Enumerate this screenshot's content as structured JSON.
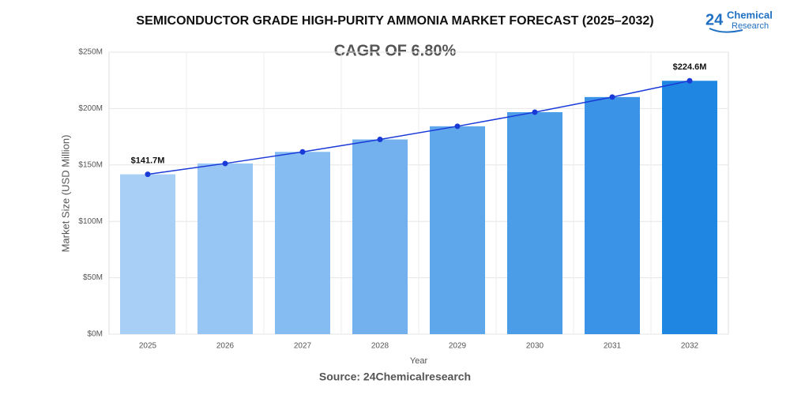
{
  "chart_data": {
    "type": "bar",
    "title": "SEMICONDUCTOR GRADE HIGH-PURITY AMMONIA MARKET FORECAST (2025–2032)",
    "subtitle": "CAGR OF 6.80%",
    "x_label": "Year",
    "y_label": "Market Size (USD Million)",
    "source": "Source: 24Chemicalresearch",
    "logo": {
      "number": "24",
      "line1": "Chemical",
      "line2": "Research"
    },
    "categories": [
      "2025",
      "2026",
      "2027",
      "2028",
      "2029",
      "2030",
      "2031",
      "2032"
    ],
    "values": [
      141.7,
      151.3,
      161.6,
      172.6,
      184.3,
      196.8,
      210.2,
      224.6
    ],
    "value_labels": [
      "$141.7M",
      null,
      null,
      null,
      null,
      null,
      null,
      "$224.6M"
    ],
    "colors": [
      "#a8d0f6",
      "#97c6f4",
      "#85bcf1",
      "#72b1ee",
      "#5fa7eb",
      "#4c9de8",
      "#3a93e6",
      "#1f86e2"
    ],
    "trend_line": true,
    "line_color": "#1a3ad8",
    "ylim": [
      0,
      250
    ],
    "yticks": [
      {
        "value": 0,
        "label": "$0M"
      },
      {
        "value": 50,
        "label": "$50M"
      },
      {
        "value": 100,
        "label": "$100M"
      },
      {
        "value": 150,
        "label": "$150M"
      },
      {
        "value": 200,
        "label": "$200M"
      },
      {
        "value": 250,
        "label": "$250M"
      }
    ],
    "grid": true
  }
}
